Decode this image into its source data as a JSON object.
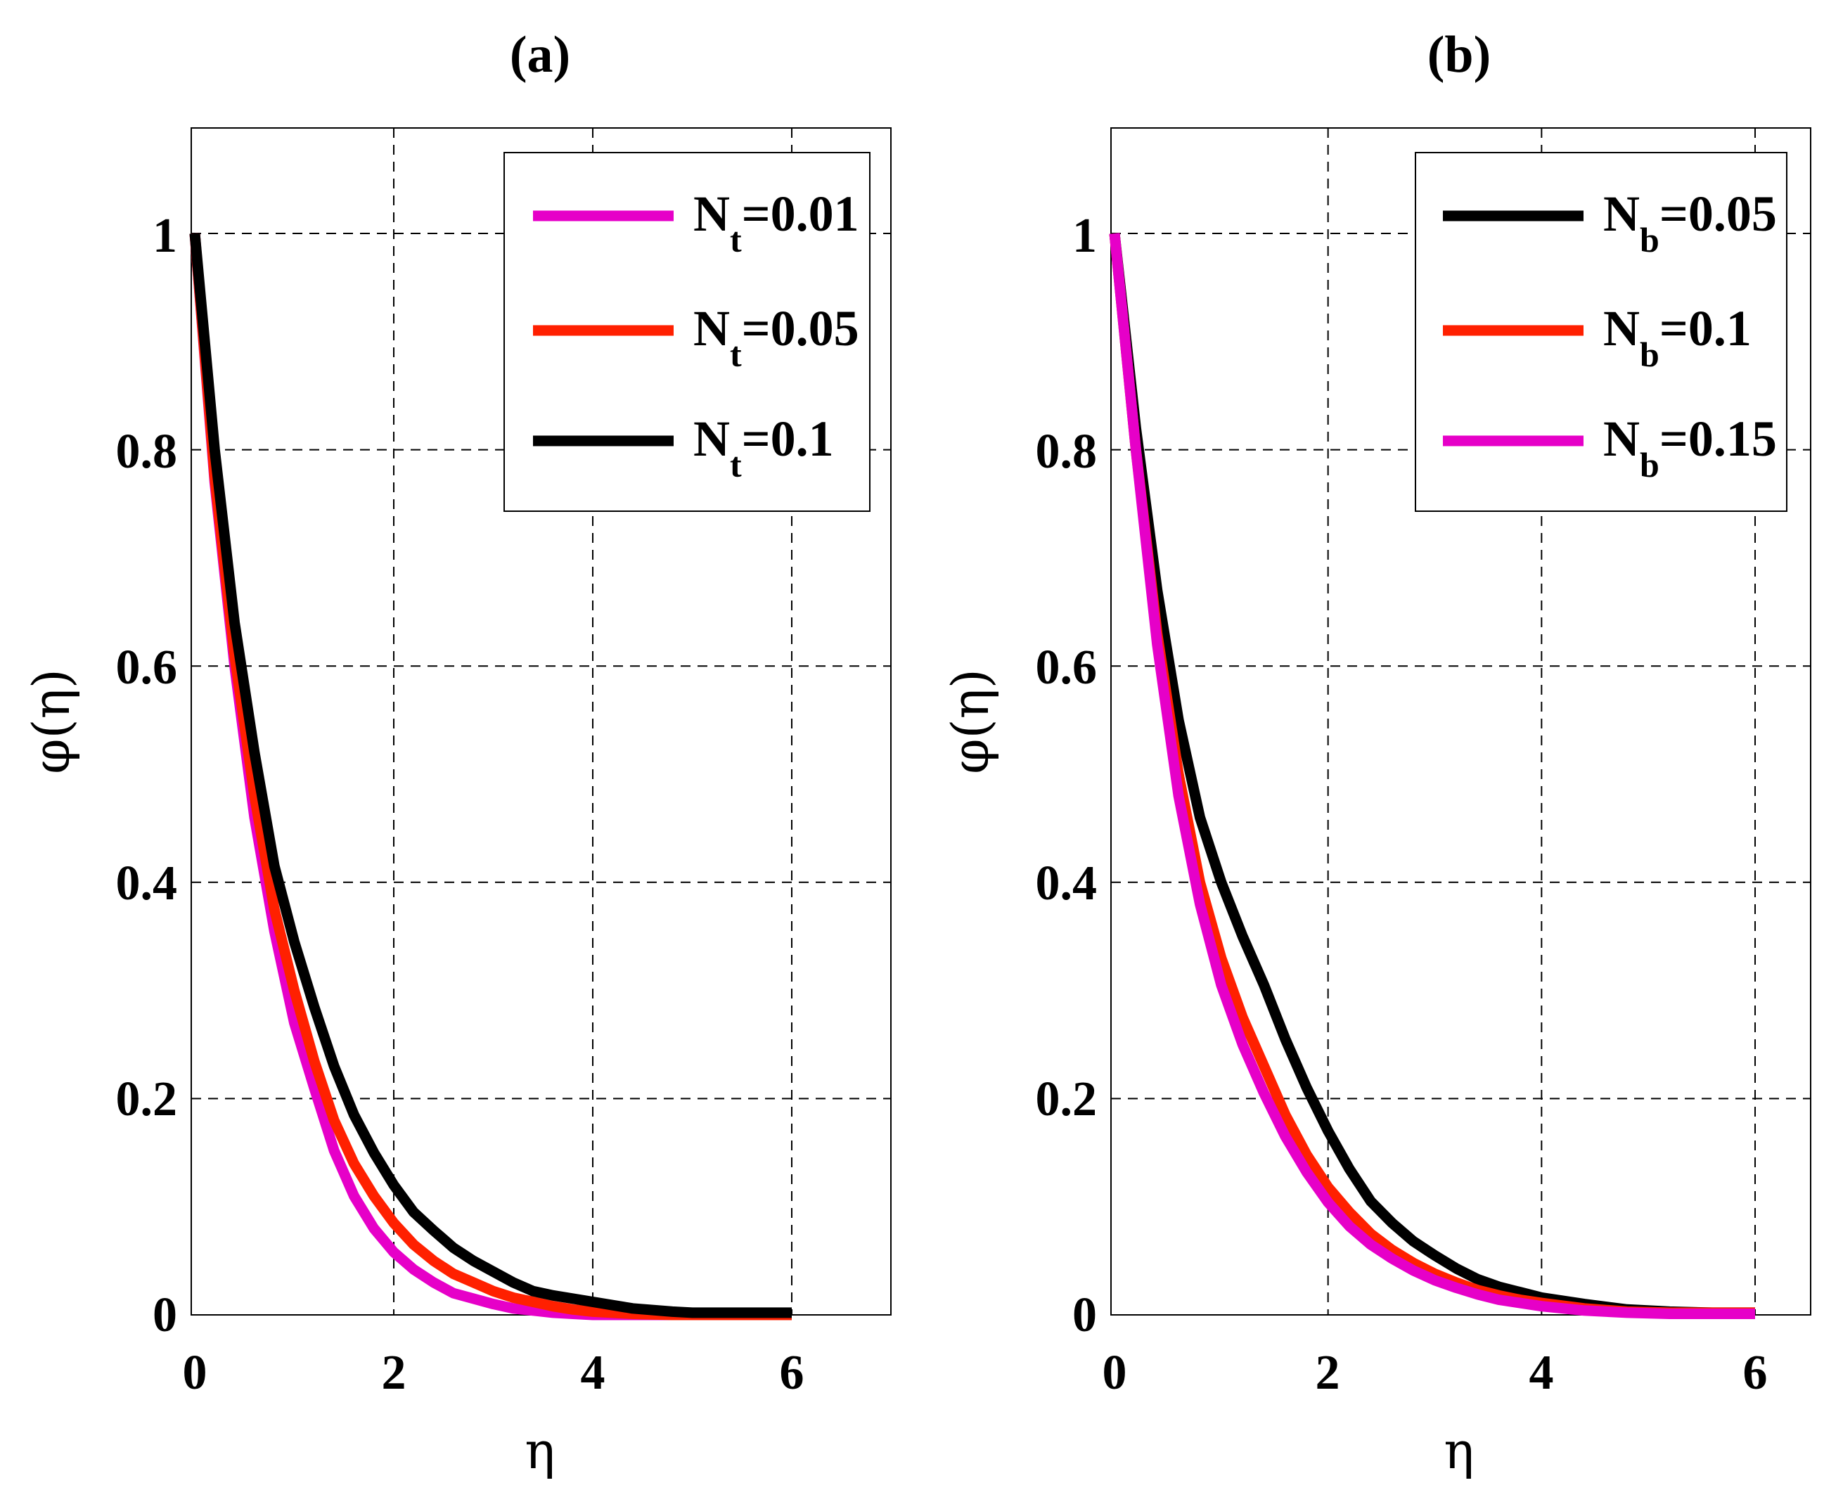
{
  "chart_data": [
    {
      "type": "line",
      "title": "(a)",
      "xlabel": "η",
      "ylabel": "φ(η)",
      "xlim": [
        0,
        7
      ],
      "ylim": [
        0,
        1.1
      ],
      "xticks": [
        0,
        2,
        4,
        6
      ],
      "yticks": [
        0,
        0.2,
        0.4,
        0.6,
        0.8,
        1
      ],
      "xtick_labels": [
        "0",
        "2",
        "4",
        "6"
      ],
      "ytick_labels": [
        "0",
        "0.2",
        "0.4",
        "0.6",
        "0.8",
        "1"
      ],
      "grid": true,
      "legend_position": "top-right",
      "series": [
        {
          "legend_main": "N",
          "legend_sub": "t",
          "legend_value": "=0.01",
          "color": "#e600c8",
          "x": [
            0,
            0.2,
            0.4,
            0.6,
            0.8,
            1.0,
            1.2,
            1.4,
            1.6,
            1.8,
            2.0,
            2.2,
            2.4,
            2.6,
            2.8,
            3.0,
            3.2,
            3.4,
            3.6,
            3.8,
            4.0,
            4.4,
            4.8,
            5.2,
            5.6,
            6.0
          ],
          "y": [
            1.0,
            0.77,
            0.6,
            0.46,
            0.355,
            0.27,
            0.21,
            0.152,
            0.11,
            0.08,
            0.058,
            0.042,
            0.03,
            0.02,
            0.015,
            0.01,
            0.006,
            0.004,
            0.002,
            0.001,
            0.0,
            0.0,
            0.0,
            0.0,
            0.0,
            0.0
          ]
        },
        {
          "legend_main": "N",
          "legend_sub": "t",
          "legend_value": "=0.05",
          "color": "#ff2000",
          "x": [
            0,
            0.2,
            0.4,
            0.6,
            0.8,
            1.0,
            1.2,
            1.4,
            1.6,
            1.8,
            2.0,
            2.2,
            2.4,
            2.6,
            2.8,
            3.0,
            3.2,
            3.4,
            3.6,
            3.8,
            4.0,
            4.4,
            4.8,
            5.2,
            5.6,
            6.0
          ],
          "y": [
            1.0,
            0.775,
            0.61,
            0.48,
            0.375,
            0.3,
            0.235,
            0.18,
            0.14,
            0.11,
            0.085,
            0.065,
            0.05,
            0.038,
            0.03,
            0.022,
            0.016,
            0.012,
            0.008,
            0.005,
            0.003,
            0.001,
            0.0,
            0.0,
            0.0,
            0.0
          ]
        },
        {
          "legend_main": "N",
          "legend_sub": "t",
          "legend_value": "=0.1",
          "color": "#000000",
          "x": [
            0,
            0.2,
            0.4,
            0.6,
            0.8,
            1.0,
            1.2,
            1.4,
            1.6,
            1.8,
            2.0,
            2.2,
            2.4,
            2.6,
            2.8,
            3.0,
            3.2,
            3.4,
            3.6,
            3.8,
            4.0,
            4.4,
            4.8,
            5.0,
            5.6,
            6.0
          ],
          "y": [
            1.0,
            0.8,
            0.64,
            0.52,
            0.415,
            0.345,
            0.285,
            0.23,
            0.185,
            0.15,
            0.12,
            0.095,
            0.078,
            0.062,
            0.05,
            0.04,
            0.03,
            0.022,
            0.018,
            0.015,
            0.012,
            0.006,
            0.003,
            0.002,
            0.002,
            0.002
          ]
        }
      ]
    },
    {
      "type": "line",
      "title": "(b)",
      "xlabel": "η",
      "ylabel": "φ(η)",
      "xlim": [
        0,
        7
      ],
      "ylim": [
        0,
        1.1
      ],
      "xticks": [
        0,
        2,
        4,
        6
      ],
      "yticks": [
        0,
        0.2,
        0.4,
        0.6,
        0.8,
        1
      ],
      "xtick_labels": [
        "0",
        "2",
        "4",
        "6"
      ],
      "ytick_labels": [
        "0",
        "0.2",
        "0.4",
        "0.6",
        "0.8",
        "1"
      ],
      "grid": true,
      "legend_position": "top-right",
      "series": [
        {
          "legend_main": "N",
          "legend_sub": "b",
          "legend_value": "=0.05",
          "color": "#000000",
          "x": [
            0,
            0.2,
            0.4,
            0.6,
            0.8,
            1.0,
            1.2,
            1.4,
            1.6,
            1.8,
            2.0,
            2.2,
            2.4,
            2.6,
            2.8,
            3.0,
            3.2,
            3.4,
            3.6,
            3.8,
            4.0,
            4.4,
            4.8,
            5.2,
            5.6,
            6.0
          ],
          "y": [
            1.0,
            0.82,
            0.67,
            0.55,
            0.46,
            0.4,
            0.35,
            0.305,
            0.255,
            0.21,
            0.17,
            0.135,
            0.105,
            0.085,
            0.068,
            0.055,
            0.043,
            0.033,
            0.026,
            0.021,
            0.016,
            0.01,
            0.005,
            0.003,
            0.002,
            0.002
          ]
        },
        {
          "legend_main": "N",
          "legend_sub": "b",
          "legend_value": "=0.1",
          "color": "#ff2000",
          "x": [
            0,
            0.2,
            0.4,
            0.6,
            0.8,
            1.0,
            1.2,
            1.4,
            1.6,
            1.8,
            2.0,
            2.2,
            2.4,
            2.6,
            2.8,
            3.0,
            3.2,
            3.4,
            3.6,
            3.8,
            4.0,
            4.4,
            4.8,
            5.2,
            5.6,
            6.0
          ],
          "y": [
            1.0,
            0.8,
            0.63,
            0.5,
            0.4,
            0.33,
            0.275,
            0.23,
            0.185,
            0.148,
            0.118,
            0.095,
            0.075,
            0.06,
            0.048,
            0.038,
            0.03,
            0.023,
            0.018,
            0.014,
            0.011,
            0.006,
            0.003,
            0.002,
            0.002,
            0.002
          ]
        },
        {
          "legend_main": "N",
          "legend_sub": "b",
          "legend_value": "=0.15",
          "color": "#e600c8",
          "x": [
            0,
            0.2,
            0.4,
            0.6,
            0.8,
            1.0,
            1.2,
            1.4,
            1.6,
            1.8,
            2.0,
            2.2,
            2.4,
            2.6,
            2.8,
            3.0,
            3.2,
            3.4,
            3.6,
            3.8,
            4.0,
            4.4,
            4.8,
            5.2,
            5.6,
            6.0
          ],
          "y": [
            1.0,
            0.8,
            0.62,
            0.48,
            0.38,
            0.305,
            0.25,
            0.205,
            0.165,
            0.132,
            0.104,
            0.082,
            0.065,
            0.052,
            0.041,
            0.032,
            0.025,
            0.019,
            0.014,
            0.011,
            0.008,
            0.004,
            0.002,
            0.001,
            0.001,
            0.001
          ]
        }
      ]
    }
  ]
}
